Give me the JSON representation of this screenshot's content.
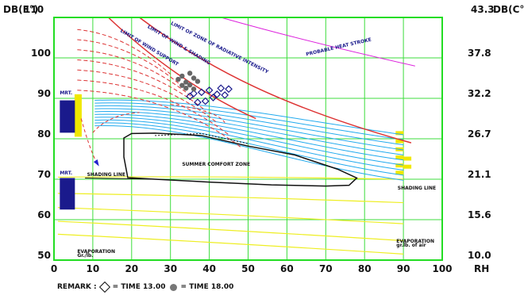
{
  "chart_data": {
    "type": "scatter",
    "title": "",
    "xlabel": "RH",
    "x_ticks": [
      "0",
      "10",
      "20",
      "30",
      "40",
      "50",
      "60",
      "70",
      "80",
      "90",
      "100"
    ],
    "y_left_label": "DB(F°)",
    "y_left_ticks": [
      "110",
      "100",
      "90",
      "80",
      "70",
      "60",
      "50"
    ],
    "y_right_label": "DB(C°)",
    "y_right_ticks": [
      "43.3",
      "37.8",
      "32.2",
      "26.7",
      "21.1",
      "15.6",
      "10.0"
    ],
    "xlim": [
      0,
      100
    ],
    "ylim": [
      50,
      110
    ],
    "grid": true,
    "annotations": {
      "probable_heat_stroke": "PROBABLE HEAT STROKE",
      "mrt_upper": "MRT.",
      "mrt_lower": "MRT.",
      "summer_comfort_zone": "SUMMER COMFORT ZONE",
      "shading_line_left": "SHADING LINE",
      "shading_line_right": "SHADING LINE",
      "evaporation_left": "EVAPORATION",
      "evaporation_left_unit": "Gr./lb.",
      "evaporation_right": "EVAPORATION",
      "evaporation_right_unit": "gr.lb. of air",
      "wind_limit_1": "LIMIT OF WIND SUPPORT",
      "wind_limit_2": "LIMIT OF WIND & SHADING",
      "radiation_limit": "LIMIT OF ZONE OF RADIATIVE INTENSITY"
    },
    "series": [
      {
        "name": "TIME 13.00",
        "marker": "open-diamond",
        "color": "#1a1a8c",
        "points": [
          [
            35,
            90.5
          ],
          [
            38,
            91.5
          ],
          [
            40,
            92.0
          ],
          [
            42,
            91.0
          ],
          [
            44,
            90.8
          ],
          [
            39,
            89.3
          ],
          [
            37,
            89.0
          ],
          [
            41,
            90.2
          ],
          [
            43,
            92.5
          ],
          [
            36,
            91.2
          ],
          [
            45,
            92.3
          ]
        ]
      },
      {
        "name": "TIME 18.00",
        "marker": "filled-circle",
        "color": "#666666",
        "points": [
          [
            33,
            95.5
          ],
          [
            34,
            94.0
          ],
          [
            35,
            93.3
          ],
          [
            36,
            95.0
          ],
          [
            34,
            92.5
          ],
          [
            37,
            94.2
          ],
          [
            33,
            93.2
          ],
          [
            35,
            96.2
          ],
          [
            36,
            92.3
          ],
          [
            32,
            94.7
          ]
        ]
      }
    ],
    "comfort_zone": [
      [
        18,
        80.2
      ],
      [
        20,
        81.3
      ],
      [
        26,
        81.4
      ],
      [
        38,
        80.8
      ],
      [
        50,
        78.2
      ],
      [
        62,
        76.0
      ],
      [
        73,
        72.5
      ],
      [
        78,
        70.3
      ],
      [
        76,
        68.5
      ],
      [
        70,
        68.3
      ],
      [
        56,
        68.6
      ],
      [
        40,
        69.3
      ],
      [
        26,
        70.0
      ],
      [
        19,
        70.4
      ],
      [
        18,
        75.5
      ],
      [
        18,
        79.5
      ]
    ]
  },
  "remark": {
    "prefix": "REMARK  :",
    "open_label": "=   TIME 13.00",
    "filled_label": "=   TIME 18.00"
  },
  "colors": {
    "plot_border": "#22dd22",
    "grid": "#3ddd3d",
    "heat_curve": "#dd3333",
    "heat_stroke": "#dd22dd",
    "wind_lines": "#22aaee",
    "shading_lines": "#eeee22",
    "zone_label_blue": "#1a1a8c",
    "yellow_tags": "#f0e800"
  }
}
